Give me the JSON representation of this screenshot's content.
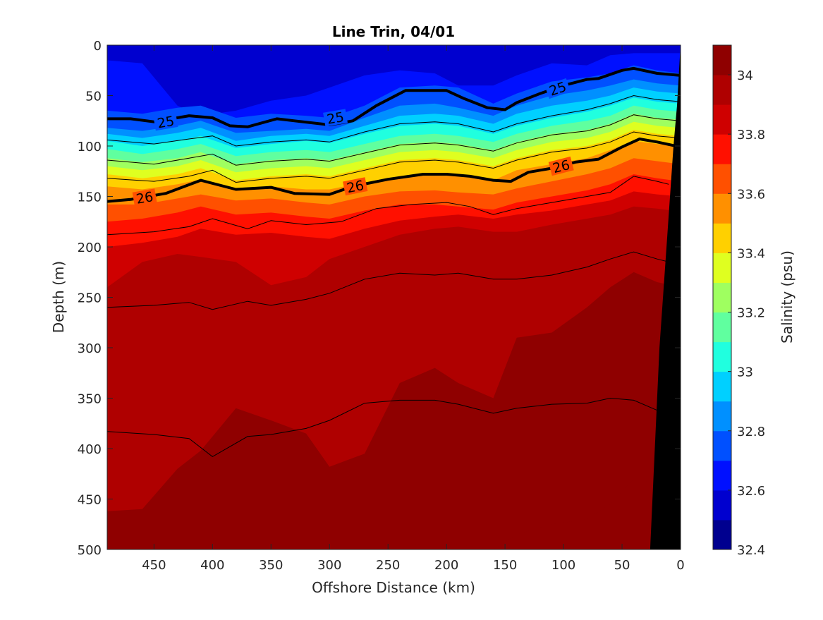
{
  "chart_data": {
    "type": "heatmap",
    "title": "Line Trin, 04/01",
    "xlabel": "Offshore Distance (km)",
    "ylabel": "Depth (m)",
    "colorbar_label": "Salinity (psu)",
    "xlim": [
      490,
      0
    ],
    "ylim": [
      0,
      500
    ],
    "x_ticks": [
      450,
      400,
      350,
      300,
      250,
      200,
      150,
      100,
      50,
      0
    ],
    "y_ticks": [
      0,
      50,
      100,
      150,
      200,
      250,
      300,
      350,
      400,
      450,
      500
    ],
    "x_tick_labels": [
      "450",
      "400",
      "350",
      "300",
      "250",
      "200",
      "150",
      "100",
      "50",
      "0"
    ],
    "y_tick_labels": [
      "0",
      "50",
      "100",
      "150",
      "200",
      "250",
      "300",
      "350",
      "400",
      "450",
      "500"
    ],
    "colorbar": {
      "levels": [
        32.4,
        32.5,
        32.6,
        32.7,
        32.8,
        32.9,
        33.0,
        33.1,
        33.2,
        33.3,
        33.4,
        33.5,
        33.6,
        33.7,
        33.8,
        33.9,
        34.0,
        34.1
      ],
      "colors": [
        "#00008f",
        "#0000cf",
        "#0010ff",
        "#0050ff",
        "#0090ff",
        "#00d0ff",
        "#20ffdf",
        "#60ff9f",
        "#9fff60",
        "#dfff20",
        "#ffd000",
        "#ff9000",
        "#ff5000",
        "#ff1000",
        "#cf0000",
        "#af0000",
        "#8f0000"
      ],
      "ticks": [
        32.4,
        32.6,
        32.8,
        33.0,
        33.2,
        33.4,
        33.6,
        33.8,
        34.0
      ],
      "tick_labels": [
        "32.4",
        "32.6",
        "32.8",
        "33",
        "33.2",
        "33.4",
        "33.6",
        "33.8",
        "34"
      ]
    },
    "grid": false,
    "salinity_field": {
      "x": [
        490,
        460,
        430,
        410,
        380,
        350,
        320,
        300,
        270,
        240,
        210,
        190,
        160,
        140,
        110,
        80,
        60,
        40,
        20,
        0
      ],
      "boundaries": [
        {
          "level": 32.7,
          "depth": [
            15,
            18,
            60,
            70,
            65,
            55,
            50,
            42,
            30,
            25,
            28,
            40,
            40,
            30,
            18,
            20,
            10,
            8,
            8,
            8
          ]
        },
        {
          "level": 32.8,
          "depth": [
            65,
            68,
            62,
            60,
            72,
            68,
            70,
            72,
            60,
            42,
            40,
            42,
            58,
            48,
            36,
            32,
            28,
            20,
            25,
            28
          ]
        },
        {
          "level": 32.9,
          "depth": [
            82,
            85,
            80,
            75,
            87,
            85,
            83,
            85,
            72,
            60,
            58,
            62,
            70,
            60,
            50,
            45,
            40,
            34,
            38,
            40
          ]
        },
        {
          "level": 33.0,
          "depth": [
            88,
            92,
            87,
            82,
            95,
            90,
            88,
            90,
            80,
            70,
            68,
            70,
            78,
            68,
            60,
            55,
            50,
            42,
            46,
            48
          ]
        },
        {
          "level": 33.1,
          "depth": [
            95,
            100,
            95,
            90,
            102,
            98,
            95,
            97,
            88,
            80,
            78,
            80,
            88,
            80,
            72,
            66,
            60,
            52,
            56,
            58
          ]
        },
        {
          "level": 33.2,
          "depth": [
            103,
            108,
            103,
            98,
            110,
            106,
            104,
            106,
            98,
            90,
            88,
            90,
            96,
            88,
            80,
            75,
            70,
            60,
            64,
            66
          ]
        },
        {
          "level": 33.3,
          "depth": [
            112,
            116,
            112,
            106,
            118,
            114,
            112,
            114,
            106,
            98,
            96,
            98,
            104,
            96,
            88,
            84,
            78,
            68,
            72,
            74
          ]
        },
        {
          "level": 33.4,
          "depth": [
            120,
            124,
            120,
            114,
            126,
            122,
            120,
            122,
            114,
            106,
            104,
            106,
            112,
            104,
            96,
            92,
            86,
            76,
            80,
            82
          ]
        },
        {
          "level": 33.5,
          "depth": [
            128,
            132,
            128,
            122,
            134,
            130,
            128,
            130,
            122,
            114,
            112,
            114,
            120,
            112,
            104,
            100,
            94,
            84,
            88,
            90
          ]
        },
        {
          "level": 33.6,
          "depth": [
            140,
            143,
            138,
            133,
            143,
            140,
            143,
            143,
            136,
            130,
            128,
            130,
            134,
            124,
            118,
            112,
            104,
            95,
            98,
            100
          ]
        },
        {
          "level": 33.7,
          "depth": [
            158,
            158,
            152,
            148,
            154,
            152,
            156,
            158,
            150,
            145,
            144,
            146,
            148,
            142,
            135,
            128,
            122,
            112,
            115,
            118
          ]
        },
        {
          "level": 33.8,
          "depth": [
            175,
            172,
            166,
            160,
            168,
            166,
            170,
            172,
            164,
            158,
            158,
            160,
            163,
            156,
            150,
            144,
            138,
            128,
            132,
            135
          ]
        },
        {
          "level": 33.9,
          "depth": [
            200,
            196,
            190,
            182,
            188,
            186,
            190,
            192,
            182,
            174,
            170,
            168,
            172,
            168,
            164,
            158,
            154,
            145,
            148,
            150
          ]
        },
        {
          "level": 34.0,
          "depth": [
            240,
            215,
            207,
            210,
            215,
            238,
            230,
            212,
            200,
            188,
            182,
            180,
            185,
            185,
            178,
            172,
            168,
            160,
            162,
            165
          ]
        },
        {
          "level": 34.1,
          "depth": [
            462,
            460,
            420,
            402,
            360,
            372,
            385,
            418,
            405,
            335,
            320,
            335,
            350,
            290,
            285,
            260,
            240,
            225,
            235,
            240
          ]
        },
        {
          "level": 34.2,
          "depth": [
            500,
            500,
            500,
            500,
            500,
            500,
            500,
            500,
            500,
            500,
            490,
            495,
            500,
            485,
            475,
            470,
            455,
            430,
            435,
            440
          ]
        }
      ]
    },
    "thin_contours": [
      {
        "x": [
          490,
          450,
          420,
          400,
          380,
          350,
          320,
          300,
          270,
          240,
          210,
          190,
          160,
          140,
          110,
          80,
          60,
          40,
          20,
          0
        ],
        "depth": [
          94,
          98,
          93,
          90,
          100,
          96,
          94,
          96,
          86,
          78,
          76,
          78,
          86,
          78,
          70,
          64,
          58,
          50,
          54,
          56
        ]
      },
      {
        "x": [
          490,
          450,
          420,
          400,
          380,
          350,
          320,
          300,
          270,
          240,
          210,
          190,
          160,
          140,
          110,
          80,
          60,
          40,
          20,
          0
        ],
        "depth": [
          114,
          118,
          112,
          108,
          119,
          115,
          113,
          115,
          107,
          99,
          97,
          99,
          105,
          97,
          89,
          85,
          79,
          69,
          73,
          75
        ]
      },
      {
        "x": [
          490,
          450,
          420,
          400,
          380,
          350,
          320,
          300,
          270,
          240,
          210,
          190,
          160,
          140,
          110,
          80,
          60,
          40,
          20,
          0
        ],
        "depth": [
          132,
          135,
          130,
          124,
          136,
          132,
          130,
          132,
          124,
          116,
          114,
          116,
          122,
          114,
          106,
          102,
          96,
          86,
          90,
          92
        ]
      },
      {
        "x": [
          490,
          450,
          420,
          400,
          370,
          350,
          320,
          290,
          260,
          230,
          200,
          180,
          160,
          140,
          110,
          80,
          60,
          40,
          20,
          10
        ],
        "depth": [
          188,
          185,
          180,
          172,
          182,
          174,
          178,
          175,
          162,
          158,
          156,
          160,
          168,
          162,
          156,
          150,
          146,
          130,
          135,
          138
        ]
      },
      {
        "x": [
          490,
          450,
          420,
          400,
          370,
          350,
          320,
          300,
          270,
          240,
          210,
          190,
          160,
          140,
          110,
          80,
          60,
          40,
          20,
          10
        ],
        "depth": [
          260,
          258,
          255,
          262,
          254,
          258,
          252,
          246,
          232,
          226,
          228,
          226,
          232,
          232,
          228,
          220,
          212,
          205,
          212,
          215
        ]
      },
      {
        "x": [
          490,
          450,
          420,
          400,
          370,
          350,
          320,
          300,
          270,
          240,
          210,
          190,
          160,
          140,
          110,
          80,
          60,
          40,
          20,
          10
        ],
        "depth": [
          383,
          386,
          390,
          408,
          388,
          386,
          380,
          372,
          355,
          352,
          352,
          356,
          365,
          360,
          356,
          355,
          350,
          352,
          362,
          368
        ]
      }
    ],
    "isopycnals": [
      {
        "label": "25",
        "label_positions": [
          [
            440,
            76
          ],
          [
            295,
            72
          ],
          [
            105,
            43
          ]
        ],
        "x": [
          490,
          470,
          450,
          420,
          400,
          385,
          370,
          345,
          330,
          300,
          280,
          260,
          235,
          200,
          185,
          165,
          150,
          140,
          120,
          100,
          80,
          70,
          50,
          40,
          20,
          0
        ],
        "depth": [
          73,
          73,
          76,
          70,
          72,
          80,
          81,
          73,
          75,
          79,
          75,
          60,
          45,
          45,
          53,
          62,
          64,
          57,
          48,
          40,
          34,
          33,
          25,
          23,
          28,
          30
        ]
      },
      {
        "label": "26",
        "label_positions": [
          [
            458,
            151
          ],
          [
            278,
            140
          ],
          [
            102,
            120
          ]
        ],
        "x": [
          490,
          470,
          440,
          410,
          380,
          350,
          330,
          300,
          280,
          250,
          220,
          200,
          180,
          160,
          145,
          130,
          110,
          90,
          70,
          50,
          35,
          20,
          0
        ],
        "depth": [
          155,
          153,
          147,
          134,
          143,
          141,
          147,
          148,
          140,
          133,
          128,
          128,
          130,
          134,
          135,
          126,
          122,
          116,
          113,
          101,
          93,
          96,
          101
        ]
      }
    ],
    "land_boundary": {
      "x": [
        0,
        1,
        3,
        6,
        12,
        18,
        26,
        0
      ],
      "depth": [
        0,
        20,
        60,
        100,
        200,
        300,
        500,
        500
      ]
    }
  }
}
